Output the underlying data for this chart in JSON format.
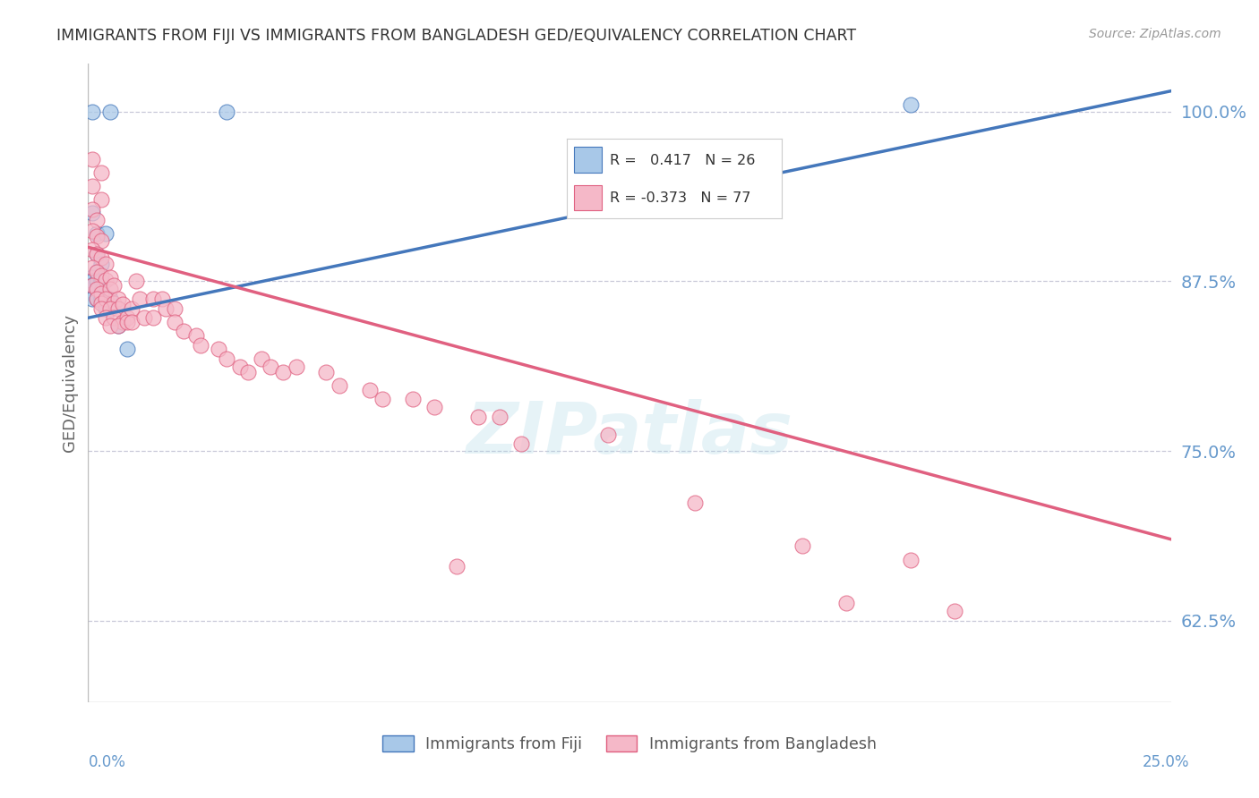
{
  "title": "IMMIGRANTS FROM FIJI VS IMMIGRANTS FROM BANGLADESH GED/EQUIVALENCY CORRELATION CHART",
  "source_text": "Source: ZipAtlas.com",
  "ylabel": "GED/Equivalency",
  "ytick_labels": [
    "100.0%",
    "87.5%",
    "75.0%",
    "62.5%"
  ],
  "ytick_values": [
    1.0,
    0.875,
    0.75,
    0.625
  ],
  "xlim": [
    0.0,
    0.25
  ],
  "ylim": [
    0.565,
    1.035
  ],
  "fiji_r": 0.417,
  "fiji_n": 26,
  "bangladesh_r": -0.373,
  "bangladesh_n": 77,
  "fiji_color": "#a8c8e8",
  "bangladesh_color": "#f5b8c8",
  "fiji_line_color": "#4477bb",
  "bangladesh_line_color": "#e06080",
  "fiji_line": [
    0.0,
    0.848,
    0.25,
    1.015
  ],
  "bangladesh_line": [
    0.0,
    0.9,
    0.25,
    0.685
  ],
  "fiji_points": [
    [
      0.001,
      1.0
    ],
    [
      0.005,
      1.0
    ],
    [
      0.001,
      0.925
    ],
    [
      0.002,
      0.91
    ],
    [
      0.004,
      0.91
    ],
    [
      0.002,
      0.895
    ],
    [
      0.003,
      0.888
    ],
    [
      0.002,
      0.882
    ],
    [
      0.001,
      0.878
    ],
    [
      0.001,
      0.875
    ],
    [
      0.001,
      0.872
    ],
    [
      0.002,
      0.875
    ],
    [
      0.003,
      0.875
    ],
    [
      0.002,
      0.868
    ],
    [
      0.003,
      0.868
    ],
    [
      0.001,
      0.862
    ],
    [
      0.002,
      0.862
    ],
    [
      0.003,
      0.862
    ],
    [
      0.004,
      0.862
    ],
    [
      0.005,
      0.862
    ],
    [
      0.004,
      0.855
    ],
    [
      0.005,
      0.855
    ],
    [
      0.007,
      0.842
    ],
    [
      0.009,
      0.825
    ],
    [
      0.032,
      1.0
    ],
    [
      0.19,
      1.005
    ]
  ],
  "bangladesh_points": [
    [
      0.001,
      0.965
    ],
    [
      0.003,
      0.955
    ],
    [
      0.001,
      0.945
    ],
    [
      0.003,
      0.935
    ],
    [
      0.001,
      0.928
    ],
    [
      0.002,
      0.92
    ],
    [
      0.001,
      0.912
    ],
    [
      0.002,
      0.908
    ],
    [
      0.003,
      0.905
    ],
    [
      0.001,
      0.898
    ],
    [
      0.002,
      0.895
    ],
    [
      0.003,
      0.892
    ],
    [
      0.004,
      0.888
    ],
    [
      0.001,
      0.885
    ],
    [
      0.002,
      0.882
    ],
    [
      0.003,
      0.879
    ],
    [
      0.004,
      0.876
    ],
    [
      0.005,
      0.878
    ],
    [
      0.001,
      0.872
    ],
    [
      0.002,
      0.869
    ],
    [
      0.003,
      0.866
    ],
    [
      0.005,
      0.869
    ],
    [
      0.006,
      0.872
    ],
    [
      0.002,
      0.862
    ],
    [
      0.003,
      0.859
    ],
    [
      0.004,
      0.862
    ],
    [
      0.006,
      0.859
    ],
    [
      0.007,
      0.862
    ],
    [
      0.003,
      0.855
    ],
    [
      0.005,
      0.855
    ],
    [
      0.007,
      0.855
    ],
    [
      0.008,
      0.858
    ],
    [
      0.004,
      0.848
    ],
    [
      0.006,
      0.848
    ],
    [
      0.008,
      0.845
    ],
    [
      0.009,
      0.848
    ],
    [
      0.005,
      0.842
    ],
    [
      0.007,
      0.842
    ],
    [
      0.009,
      0.845
    ],
    [
      0.01,
      0.855
    ],
    [
      0.01,
      0.845
    ],
    [
      0.011,
      0.875
    ],
    [
      0.012,
      0.862
    ],
    [
      0.013,
      0.848
    ],
    [
      0.015,
      0.862
    ],
    [
      0.015,
      0.848
    ],
    [
      0.017,
      0.862
    ],
    [
      0.018,
      0.855
    ],
    [
      0.02,
      0.855
    ],
    [
      0.02,
      0.845
    ],
    [
      0.022,
      0.838
    ],
    [
      0.025,
      0.835
    ],
    [
      0.026,
      0.828
    ],
    [
      0.03,
      0.825
    ],
    [
      0.032,
      0.818
    ],
    [
      0.035,
      0.812
    ],
    [
      0.037,
      0.808
    ],
    [
      0.04,
      0.818
    ],
    [
      0.042,
      0.812
    ],
    [
      0.045,
      0.808
    ],
    [
      0.048,
      0.812
    ],
    [
      0.055,
      0.808
    ],
    [
      0.058,
      0.798
    ],
    [
      0.065,
      0.795
    ],
    [
      0.068,
      0.788
    ],
    [
      0.075,
      0.788
    ],
    [
      0.08,
      0.782
    ],
    [
      0.09,
      0.775
    ],
    [
      0.095,
      0.775
    ],
    [
      0.1,
      0.755
    ],
    [
      0.12,
      0.762
    ],
    [
      0.14,
      0.712
    ],
    [
      0.165,
      0.68
    ],
    [
      0.19,
      0.67
    ],
    [
      0.2,
      0.632
    ],
    [
      0.085,
      0.665
    ],
    [
      0.175,
      0.638
    ]
  ],
  "watermark_text": "ZIPatlas",
  "grid_color": "#c8c8d8",
  "background_color": "#ffffff",
  "title_color": "#333333",
  "axis_label_color": "#6699cc",
  "legend_fiji_label": "Immigrants from Fiji",
  "legend_bangladesh_label": "Immigrants from Bangladesh"
}
